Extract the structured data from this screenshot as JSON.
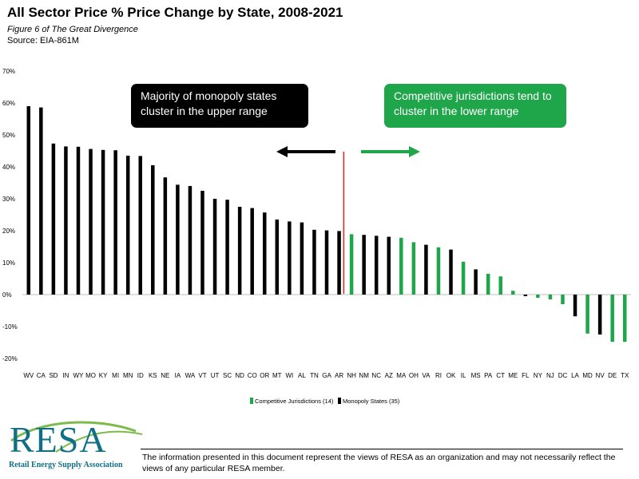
{
  "header": {
    "title": "All Sector Price % Price Change by State, 2008-2021",
    "subtitle": "Figure 6 of The Great Divergence",
    "source": "Source: EIA-861M"
  },
  "annotations": {
    "left": "Majority of monopoly states cluster in the upper range",
    "right": "Competitive jurisdictions tend to cluster in the lower range"
  },
  "colors": {
    "competitive": "#1fa64a",
    "monopoly": "#000000",
    "divider": "#e03030"
  },
  "chart_data": {
    "type": "bar",
    "title": "",
    "xlabel": "",
    "ylabel": "",
    "ylim": [
      -20,
      70
    ],
    "yticks": [
      70,
      60,
      50,
      40,
      30,
      20,
      10,
      0,
      -10,
      -20
    ],
    "ytick_labels": [
      "70%",
      "60%",
      "50%",
      "40%",
      "30%",
      "20%",
      "10%",
      "0%",
      "-10%",
      "-20%"
    ],
    "grid": false,
    "legend_position": "bottom",
    "legend": [
      {
        "label": "Competitive Jurisdictions (14)",
        "group": "competitive"
      },
      {
        "label": "Monopoly States (35)",
        "group": "monopoly"
      }
    ],
    "categories": [
      "WV",
      "CA",
      "SD",
      "IN",
      "WY",
      "MO",
      "KY",
      "MI",
      "MN",
      "ID",
      "KS",
      "NE",
      "IA",
      "WA",
      "VT",
      "UT",
      "SC",
      "ND",
      "CO",
      "OR",
      "MT",
      "WI",
      "AL",
      "TN",
      "GA",
      "AR",
      "NH",
      "NM",
      "NC",
      "AZ",
      "MA",
      "OH",
      "VA",
      "RI",
      "OK",
      "IL",
      "MS",
      "PA",
      "CT",
      "ME",
      "FL",
      "NY",
      "NJ",
      "DC",
      "LA",
      "MD",
      "NV",
      "DE",
      "TX"
    ],
    "values": [
      59,
      58.6,
      47.3,
      46.4,
      46.3,
      45.6,
      45.3,
      45.2,
      43.5,
      43.4,
      40.5,
      36.7,
      34.4,
      34.0,
      32.5,
      30.0,
      29.7,
      27.5,
      27.1,
      25.7,
      23.5,
      22.9,
      22.6,
      20.3,
      20.1,
      19.9,
      18.9,
      18.7,
      18.4,
      18.1,
      17.8,
      16.4,
      15.6,
      14.8,
      14.1,
      10.3,
      7.9,
      6.5,
      5.7,
      1.2,
      -0.5,
      -1.0,
      -1.5,
      -3.0,
      -6.8,
      -12.2,
      -12.5,
      -14.8,
      -14.8
    ],
    "groups": [
      "monopoly",
      "monopoly",
      "monopoly",
      "monopoly",
      "monopoly",
      "monopoly",
      "monopoly",
      "monopoly",
      "monopoly",
      "monopoly",
      "monopoly",
      "monopoly",
      "monopoly",
      "monopoly",
      "monopoly",
      "monopoly",
      "monopoly",
      "monopoly",
      "monopoly",
      "monopoly",
      "monopoly",
      "monopoly",
      "monopoly",
      "monopoly",
      "monopoly",
      "monopoly",
      "competitive",
      "monopoly",
      "monopoly",
      "monopoly",
      "competitive",
      "competitive",
      "monopoly",
      "competitive",
      "monopoly",
      "competitive",
      "monopoly",
      "competitive",
      "competitive",
      "competitive",
      "monopoly",
      "competitive",
      "competitive",
      "competitive",
      "monopoly",
      "competitive",
      "monopoly",
      "competitive",
      "competitive"
    ]
  },
  "footer": {
    "logo_text": "RESA",
    "logo_tagline": "Retail Energy Supply Association",
    "disclaimer": "The information presented in this document represent the views of RESA as an organization and may not necessarily reflect the views of any particular RESA member."
  }
}
